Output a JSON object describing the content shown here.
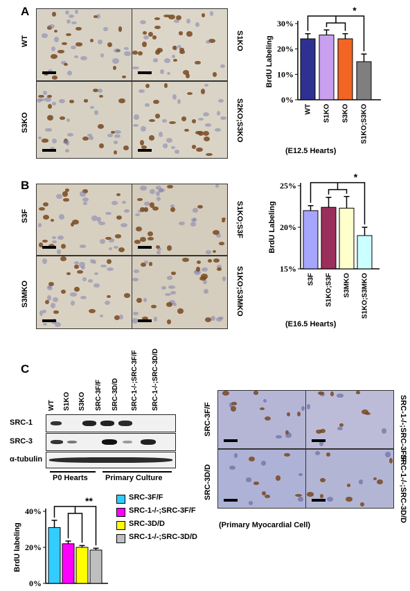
{
  "panels": {
    "a": {
      "letter": "A",
      "images": [
        {
          "label": "WT"
        },
        {
          "label": "S1KO"
        },
        {
          "label": "S3KO"
        },
        {
          "label": "S2KO;S3KO"
        }
      ],
      "caption": "(E12.5 Hearts)",
      "star": "*"
    },
    "b": {
      "letter": "B",
      "images": [
        {
          "label": "S3F"
        },
        {
          "label": "S1KO;S3F"
        },
        {
          "label": "S3MKO"
        },
        {
          "label": "S1KO;S3MKO"
        }
      ],
      "caption": "(E16.5 Hearts)",
      "star": "*"
    },
    "c": {
      "letter": "C",
      "blot": {
        "lanes": [
          "WT",
          "S1KO",
          "S3KO",
          "SRC-3F/F",
          "SRC-3D/D",
          "SRC-1-/-;SRC-3F/F",
          "SRC-1-/-;SRC-3D/D"
        ],
        "rows": [
          "SRC-1",
          "SRC-3",
          "α-tubulin"
        ],
        "groups": [
          "P0 Hearts",
          "Primary Culture"
        ]
      },
      "images": [
        {
          "label": "SRC-3F/F"
        },
        {
          "label": "SRC-1-/-;SRC-3F/F"
        },
        {
          "label": "SRC-3D/D"
        },
        {
          "label": "SRC-1-/-;SRC-3D/D"
        }
      ],
      "caption": "(Primary Myocardial Cell)",
      "star": "**"
    }
  },
  "chart_data": [
    {
      "type": "bar",
      "categories": [
        "WT",
        "S1KO",
        "S3KO",
        "S1KO;S3KO"
      ],
      "values": [
        24,
        25.5,
        24,
        15
      ],
      "errors": [
        2,
        2,
        2,
        3
      ],
      "colors": [
        "#2e3192",
        "#c9a0f0",
        "#f26522",
        "#7f7f7f"
      ],
      "ylabel": "BrdU Labeling",
      "yticks": [
        "0%",
        "10%",
        "20%",
        "30%"
      ],
      "ylim": [
        0,
        30
      ]
    },
    {
      "type": "bar",
      "categories": [
        "S3F",
        "S1KO;S3F",
        "S3MKO",
        "S1KO;S3MKO"
      ],
      "values": [
        22,
        22.4,
        22.3,
        19
      ],
      "errors": [
        0.6,
        1.2,
        1.4,
        1
      ],
      "colors": [
        "#a6a6ff",
        "#9b2f5b",
        "#ffffcc",
        "#ccffff"
      ],
      "ylabel": "BrdU Labeling",
      "yticks": [
        "15%",
        "20%",
        "25%"
      ],
      "ylim": [
        15,
        25
      ]
    },
    {
      "type": "bar",
      "categories": [
        "SRC-3F/F",
        "SRC-1-/-;SRC-3F/F",
        "SRC-3D/D",
        "SRC-1-/-;SRC-3D/D"
      ],
      "values": [
        31,
        22,
        20,
        18.5
      ],
      "errors": [
        4,
        1.5,
        1,
        1
      ],
      "colors": [
        "#33ccff",
        "#ff00ff",
        "#ffff00",
        "#bfbfbf"
      ],
      "ylabel": "BrdU labeling",
      "yticks": [
        "0%",
        "20%",
        "40%"
      ],
      "ylim": [
        0,
        40
      ],
      "legend": [
        "SRC-3F/F",
        "SRC-1-/-;SRC-3F/F",
        "SRC-3D/D",
        "SRC-1-/-;SRC-3D/D"
      ]
    }
  ]
}
